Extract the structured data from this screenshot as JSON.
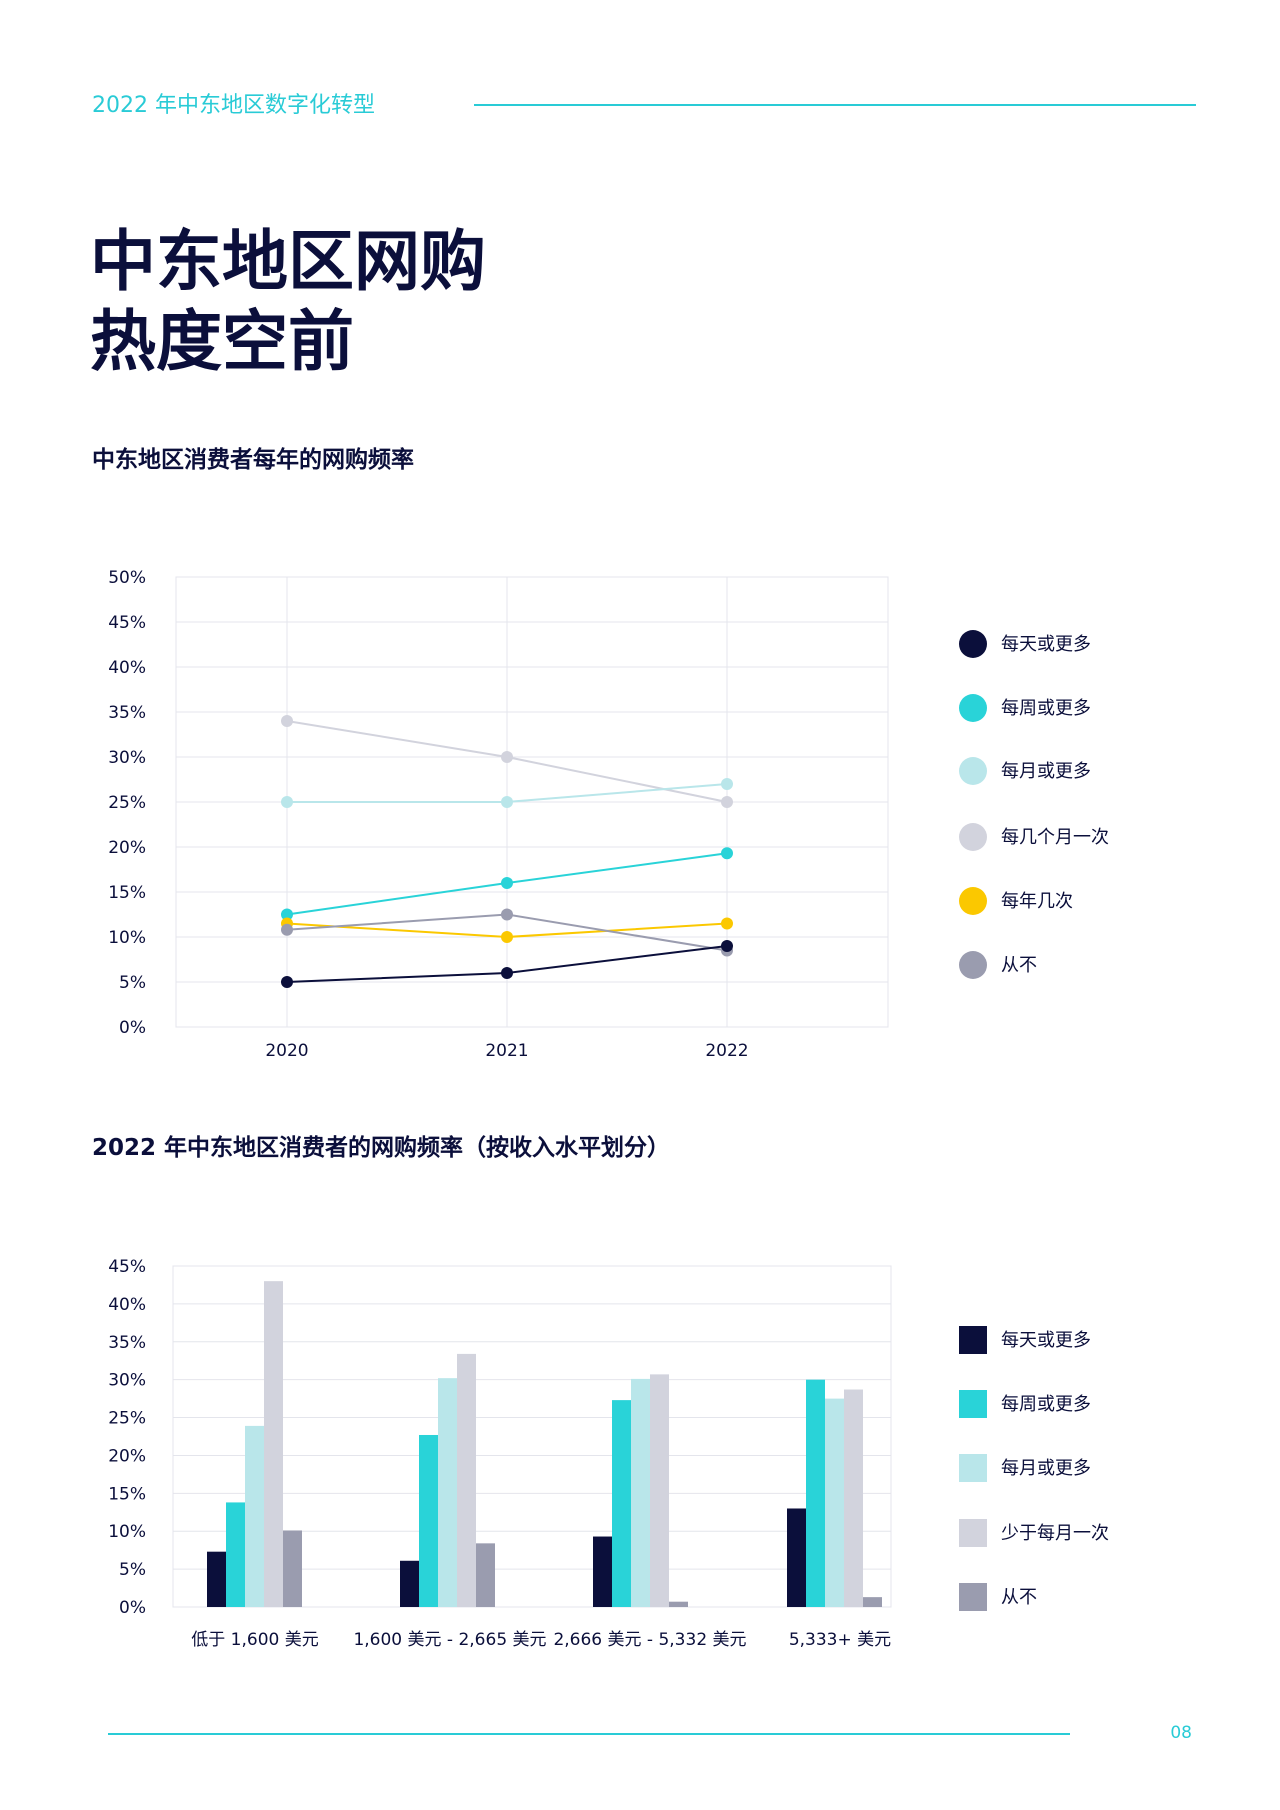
{
  "header": {
    "title": "2022 年中东地区数字化转型"
  },
  "page": {
    "title_line1": "中东地区网购",
    "title_line2": "热度空前",
    "page_number": "08"
  },
  "colors": {
    "daily": "#0b0f3b",
    "weekly": "#29d3d8",
    "monthly": "#b9e6ea",
    "few_months": "#d2d3dd",
    "few_year": "#fbc800",
    "never": "#9a9caf",
    "accent": "#29cbd6"
  },
  "chart_data": [
    {
      "type": "line",
      "title": "中东地区消费者每年的网购频率",
      "x": [
        "2020",
        "2021",
        "2022"
      ],
      "ylim": [
        0,
        50
      ],
      "yticks": [
        "0%",
        "5%",
        "10%",
        "15%",
        "20%",
        "25%",
        "30%",
        "35%",
        "40%",
        "45%",
        "50%"
      ],
      "xlabel": "",
      "ylabel": "",
      "grid": true,
      "legend_position": "right",
      "series": [
        {
          "name": "每天或更多",
          "color_key": "daily",
          "values": [
            5,
            6,
            9
          ]
        },
        {
          "name": "每周或更多",
          "color_key": "weekly",
          "values": [
            12.5,
            16,
            19.3
          ]
        },
        {
          "name": "每月或更多",
          "color_key": "monthly",
          "values": [
            25,
            25,
            27
          ]
        },
        {
          "name": "每几个月一次",
          "color_key": "few_months",
          "values": [
            34,
            30,
            25
          ]
        },
        {
          "name": "每年几次",
          "color_key": "few_year",
          "values": [
            11.5,
            10,
            11.5
          ]
        },
        {
          "name": "从不",
          "color_key": "never",
          "values": [
            10.8,
            12.5,
            8.5
          ]
        }
      ]
    },
    {
      "type": "bar",
      "title": "2022 年中东地区消费者的网购频率（按收入水平划分）",
      "categories": [
        "低于 1,600 美元",
        "1,600 美元 - 2,665 美元",
        "2,666 美元 - 5,332 美元",
        "5,333+ 美元"
      ],
      "ylim": [
        0,
        45
      ],
      "yticks": [
        "0%",
        "5%",
        "10%",
        "15%",
        "20%",
        "25%",
        "30%",
        "35%",
        "40%",
        "45%"
      ],
      "xlabel": "",
      "ylabel": "",
      "grid": true,
      "legend_position": "right",
      "series": [
        {
          "name": "每天或更多",
          "color_key": "daily",
          "values": [
            7.3,
            6.1,
            9.3,
            13
          ]
        },
        {
          "name": "每周或更多",
          "color_key": "weekly",
          "values": [
            13.8,
            22.7,
            27.3,
            30
          ]
        },
        {
          "name": "每月或更多",
          "color_key": "monthly",
          "values": [
            23.9,
            30.2,
            30.1,
            27.5
          ]
        },
        {
          "name": "少于每月一次",
          "color_key": "few_months",
          "values": [
            43,
            33.4,
            30.7,
            28.7
          ]
        },
        {
          "name": "从不",
          "color_key": "never",
          "values": [
            10.1,
            8.4,
            0.7,
            1.3
          ]
        }
      ]
    }
  ]
}
